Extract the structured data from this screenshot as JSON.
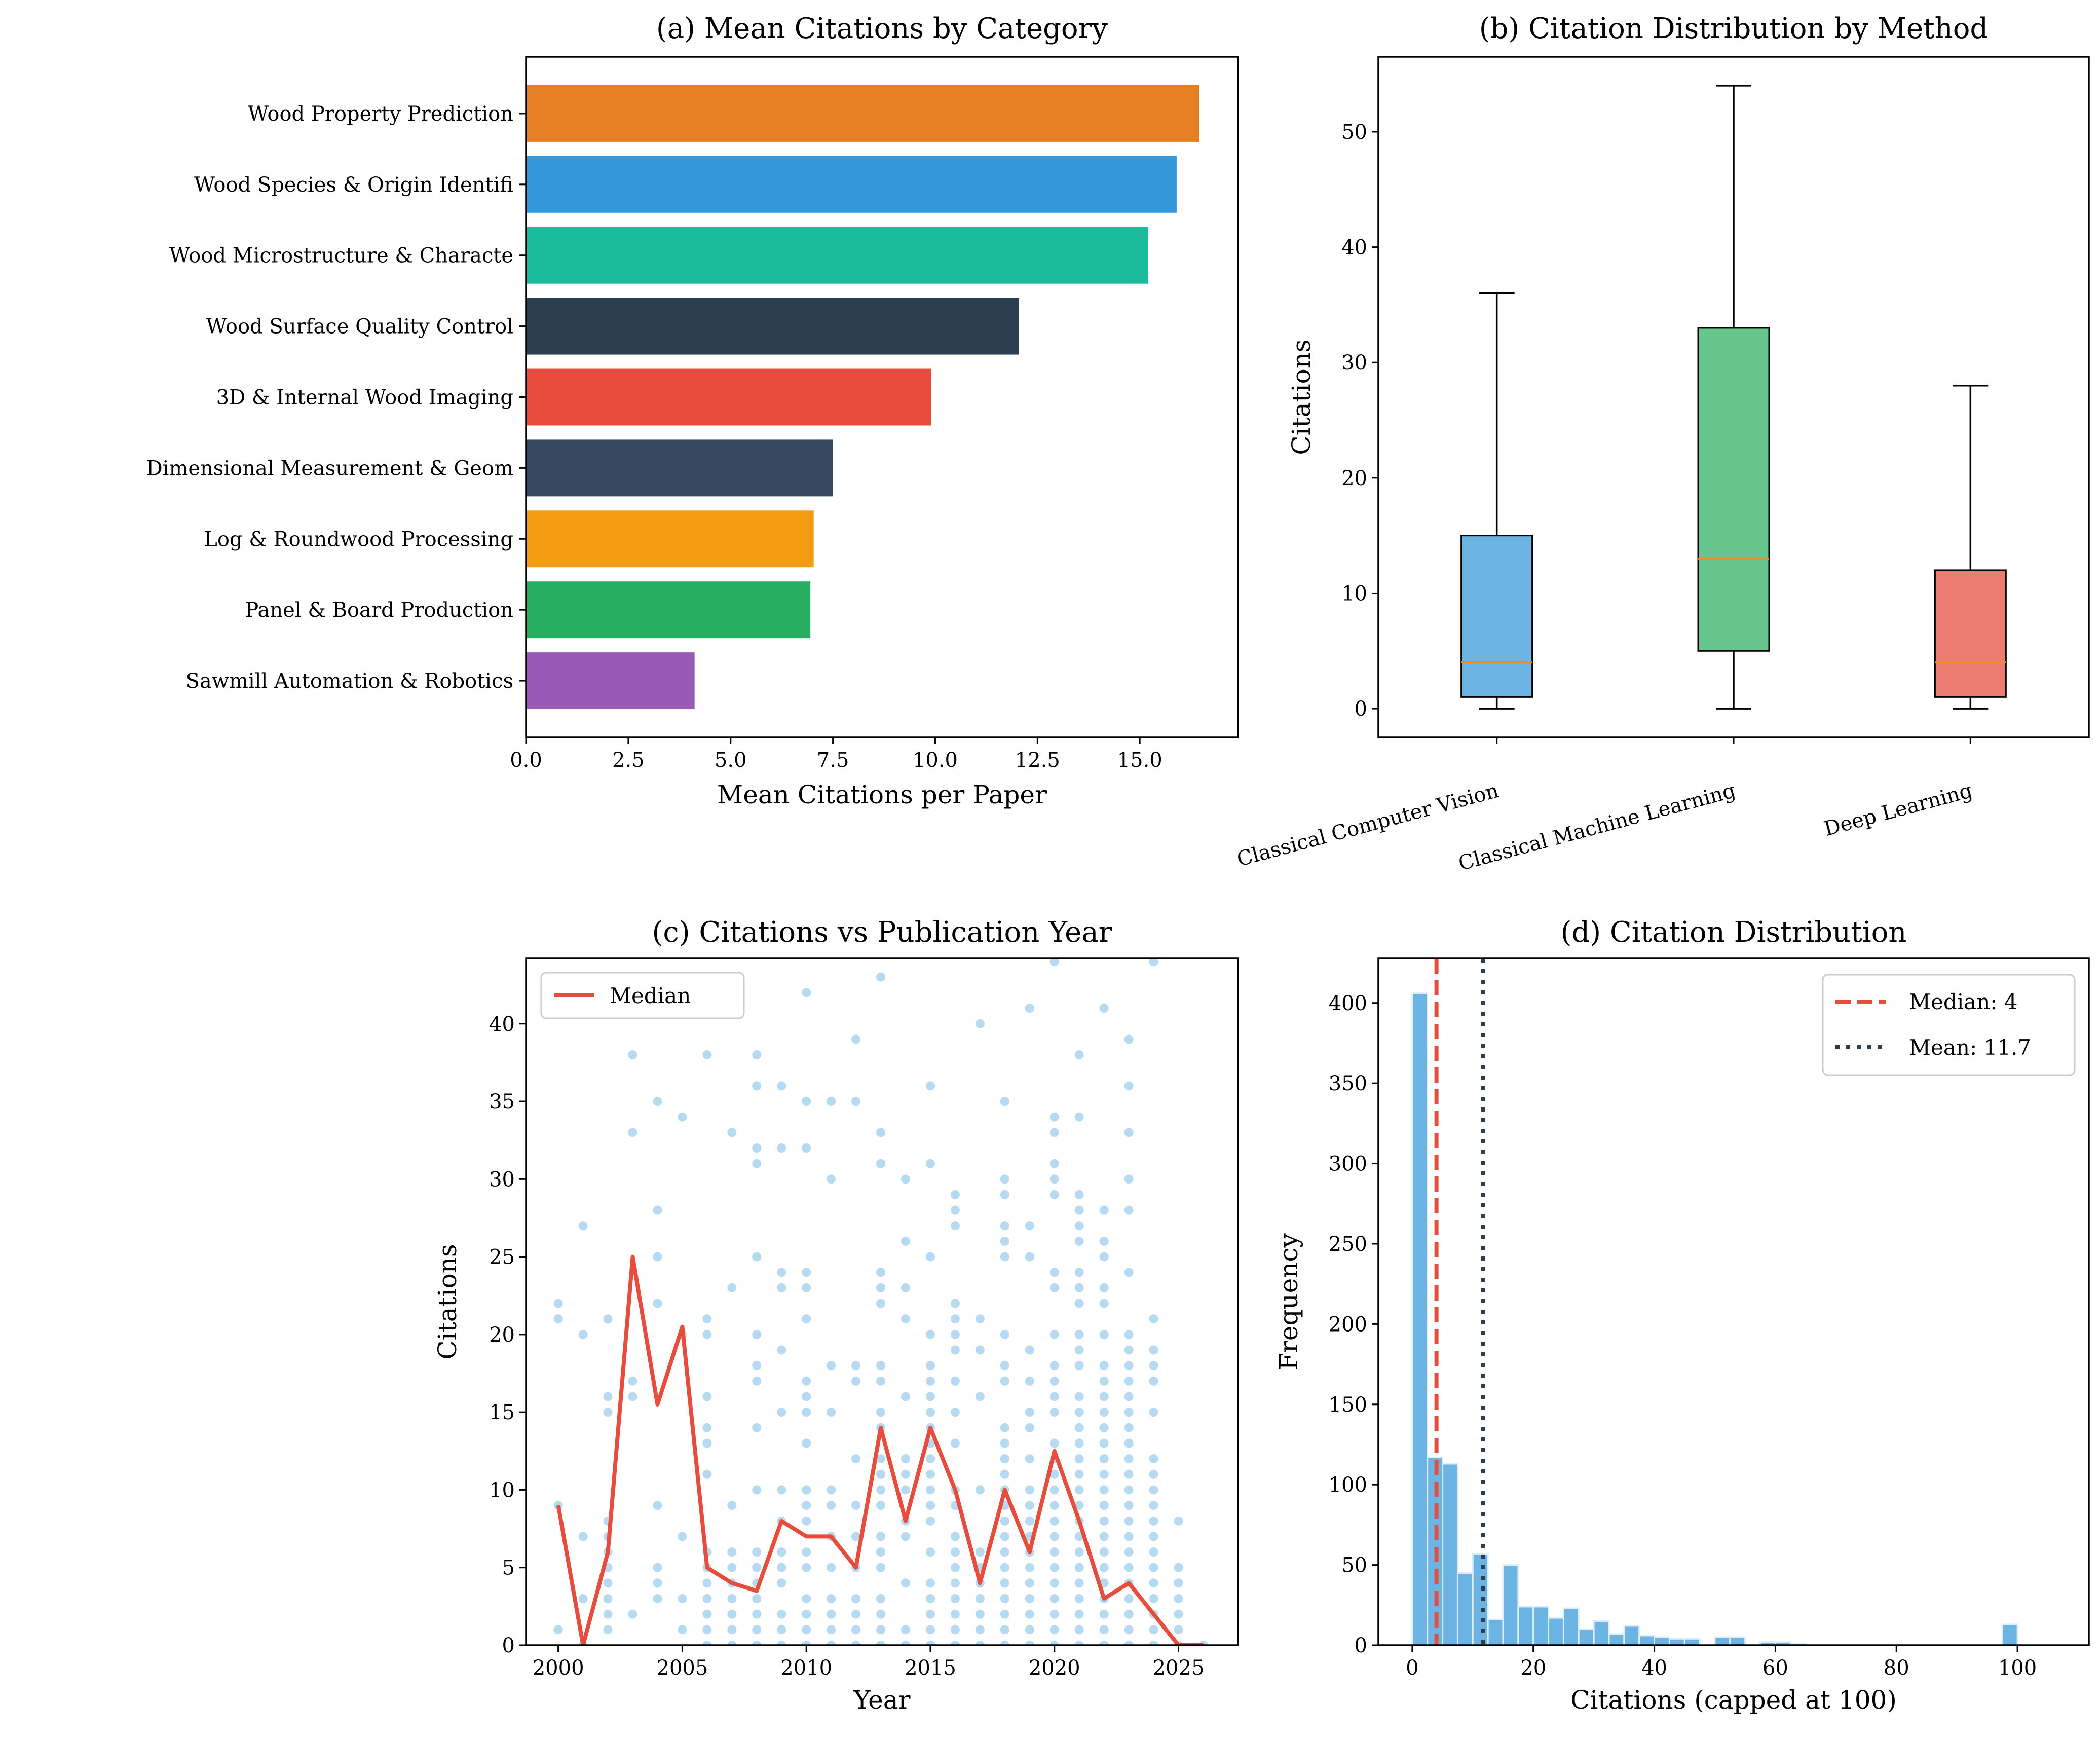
{
  "chart_data": [
    {
      "type": "bar",
      "orientation": "horizontal",
      "title": "(a) Mean Citations by Category",
      "xlabel": "Mean Citations per Paper",
      "ylabel": "",
      "xlim": [
        0,
        17.4
      ],
      "xticks": [
        "0.0",
        "2.5",
        "5.0",
        "7.5",
        "10.0",
        "12.5",
        "15.0"
      ],
      "categories": [
        "Wood Property Prediction",
        "Wood Species & Origin Identifi",
        "Wood Microstructure & Characte",
        "Wood Surface Quality Control",
        "3D & Internal Wood Imaging",
        "Dimensional Measurement & Geom",
        "Log & Roundwood Processing",
        "Panel & Board Production",
        "Sawmill Automation & Robotics"
      ],
      "values": [
        16.45,
        15.9,
        15.2,
        12.05,
        9.9,
        7.5,
        7.03,
        6.95,
        4.12
      ],
      "colors": [
        "#e67e22",
        "#3498db",
        "#1abc9c",
        "#2c3e50",
        "#e74c3c",
        "#34495e",
        "#f39c12",
        "#27ae60",
        "#9b59b6"
      ]
    },
    {
      "type": "box",
      "title": "(b) Citation Distribution by Method",
      "ylabel": "Citations",
      "ylim": [
        -2.5,
        56.5
      ],
      "yticks": [
        "0",
        "10",
        "20",
        "30",
        "40",
        "50"
      ],
      "categories": [
        "Classical Computer Vision",
        "Classical Machine Learning",
        "Deep Learning"
      ],
      "boxes": [
        {
          "min": 0,
          "q1": 1,
          "median": 4,
          "q3": 15,
          "max": 36,
          "color": "#6cb4e4"
        },
        {
          "min": 0,
          "q1": 5,
          "median": 13,
          "q3": 33,
          "max": 54,
          "color": "#66c68c"
        },
        {
          "min": 0,
          "q1": 1,
          "median": 4,
          "q3": 12,
          "max": 28,
          "color": "#ec7b72"
        }
      ],
      "median_color": "#f08a24"
    },
    {
      "type": "scatter",
      "title": "(c) Citations vs Publication Year",
      "xlabel": "Year",
      "ylabel": "Citations",
      "xlim": [
        1998.7,
        2027.4
      ],
      "ylim": [
        0,
        44.2
      ],
      "xticks": [
        "2000",
        "2005",
        "2010",
        "2015",
        "2020",
        "2025"
      ],
      "yticks": [
        "0",
        "5",
        "10",
        "15",
        "20",
        "25",
        "30",
        "35",
        "40"
      ],
      "legend": {
        "label": "Median",
        "placement": "top-left"
      },
      "point_color": "#5dade2",
      "line_color": "#e74c3c",
      "points_by_year": {
        "2000": [
          1,
          9,
          21,
          22
        ],
        "2001": [
          0,
          3,
          7,
          20,
          27
        ],
        "2002": [
          1,
          2,
          3,
          4,
          5,
          6,
          7,
          8,
          15,
          16,
          21
        ],
        "2003": [
          2,
          16,
          17,
          33,
          38
        ],
        "2004": [
          3,
          4,
          5,
          9,
          22,
          25,
          28,
          35
        ],
        "2005": [
          1,
          3,
          7,
          20,
          34
        ],
        "2006": [
          0,
          1,
          2,
          3,
          4,
          5,
          6,
          11,
          13,
          14,
          16,
          20,
          21,
          38
        ],
        "2007": [
          0,
          1,
          2,
          3,
          4,
          5,
          6,
          9,
          23,
          33
        ],
        "2008": [
          0,
          1,
          2,
          3,
          4,
          5,
          6,
          10,
          14,
          17,
          18,
          20,
          25,
          31,
          32,
          36,
          38
        ],
        "2009": [
          0,
          1,
          2,
          4,
          5,
          6,
          8,
          10,
          15,
          19,
          23,
          24,
          32,
          36
        ],
        "2010": [
          0,
          1,
          2,
          3,
          5,
          6,
          8,
          9,
          10,
          13,
          15,
          16,
          17,
          21,
          23,
          24,
          32,
          35,
          42
        ],
        "2011": [
          0,
          1,
          2,
          3,
          5,
          7,
          9,
          10,
          15,
          18,
          30,
          35
        ],
        "2012": [
          0,
          1,
          2,
          3,
          5,
          7,
          9,
          12,
          17,
          18,
          35,
          39
        ],
        "2013": [
          0,
          1,
          2,
          3,
          5,
          6,
          7,
          9,
          10,
          11,
          12,
          14,
          15,
          17,
          18,
          22,
          23,
          24,
          31,
          33,
          43
        ],
        "2014": [
          0,
          1,
          4,
          7,
          8,
          10,
          11,
          12,
          16,
          21,
          23,
          26,
          30
        ],
        "2015": [
          0,
          1,
          2,
          3,
          4,
          6,
          8,
          9,
          10,
          11,
          12,
          13,
          14,
          15,
          16,
          17,
          18,
          20,
          25,
          31,
          36
        ],
        "2016": [
          0,
          1,
          2,
          3,
          4,
          5,
          6,
          7,
          9,
          10,
          13,
          15,
          17,
          19,
          20,
          21,
          22,
          27,
          28,
          29
        ],
        "2017": [
          0,
          1,
          2,
          3,
          4,
          5,
          6,
          10,
          16,
          19,
          21,
          40
        ],
        "2018": [
          0,
          1,
          2,
          3,
          4,
          5,
          6,
          7,
          8,
          9,
          10,
          11,
          12,
          13,
          14,
          17,
          18,
          20,
          25,
          26,
          27,
          29,
          30,
          35
        ],
        "2019": [
          0,
          1,
          2,
          3,
          4,
          5,
          6,
          7,
          8,
          9,
          10,
          12,
          14,
          15,
          17,
          19,
          25,
          27,
          41
        ],
        "2020": [
          0,
          1,
          2,
          3,
          4,
          5,
          6,
          7,
          8,
          9,
          10,
          11,
          12,
          13,
          15,
          16,
          17,
          18,
          20,
          23,
          24,
          29,
          30,
          31,
          33,
          34,
          44
        ],
        "2021": [
          0,
          1,
          2,
          3,
          4,
          5,
          6,
          7,
          8,
          9,
          10,
          11,
          12,
          13,
          14,
          15,
          16,
          18,
          19,
          20,
          22,
          23,
          24,
          26,
          27,
          28,
          29,
          34,
          38
        ],
        "2022": [
          0,
          1,
          2,
          3,
          4,
          5,
          6,
          7,
          8,
          9,
          10,
          11,
          12,
          13,
          14,
          15,
          16,
          17,
          18,
          20,
          22,
          23,
          25,
          26,
          28,
          41
        ],
        "2023": [
          0,
          1,
          2,
          3,
          4,
          5,
          6,
          7,
          8,
          9,
          10,
          11,
          12,
          13,
          14,
          15,
          16,
          17,
          18,
          19,
          20,
          24,
          28,
          30,
          33,
          36,
          39
        ],
        "2024": [
          0,
          1,
          2,
          3,
          4,
          5,
          6,
          7,
          8,
          9,
          10,
          11,
          12,
          15,
          17,
          18,
          19,
          21,
          44
        ],
        "2025": [
          0,
          1,
          2,
          3,
          4,
          5,
          8
        ],
        "2026": [
          0
        ]
      },
      "median_line": {
        "x": [
          2000,
          2001,
          2002,
          2003,
          2004,
          2005,
          2006,
          2007,
          2008,
          2009,
          2010,
          2011,
          2012,
          2013,
          2014,
          2015,
          2016,
          2017,
          2018,
          2019,
          2020,
          2021,
          2022,
          2023,
          2024,
          2025,
          2026
        ],
        "y": [
          9,
          0,
          6,
          25,
          15.5,
          20.5,
          5,
          4,
          3.5,
          8,
          7,
          7,
          5,
          14,
          8,
          14,
          10,
          4,
          10,
          6,
          12.5,
          8,
          3,
          4,
          2,
          0,
          0
        ]
      }
    },
    {
      "type": "histogram",
      "title": "(d) Citation Distribution",
      "xlabel": "Citations (capped at 100)",
      "ylabel": "Frequency",
      "xlim": [
        -5.6,
        111.8
      ],
      "ylim": [
        0,
        427.7
      ],
      "xticks": [
        "0",
        "20",
        "40",
        "60",
        "80",
        "100"
      ],
      "yticks": [
        "0",
        "50",
        "100",
        "150",
        "200",
        "250",
        "300",
        "350",
        "400"
      ],
      "bin_width": 2.5,
      "bin_start": 0,
      "counts": [
        406,
        117,
        113,
        45,
        57,
        16,
        50,
        24,
        24,
        17,
        23,
        10,
        15,
        7,
        12,
        6,
        5,
        4,
        4,
        0,
        5,
        5,
        0,
        2,
        2,
        1,
        0,
        0,
        0,
        0,
        0,
        0,
        0,
        0,
        0,
        0,
        0,
        0,
        0,
        13
      ],
      "bar_color": "#6cb4e4",
      "median": 4,
      "mean": 11.7,
      "legend": [
        "Median: 4",
        "Mean: 11.7"
      ],
      "legend_placement": "top-right",
      "median_color": "#e74c3c",
      "mean_color": "#2c3e50"
    }
  ]
}
